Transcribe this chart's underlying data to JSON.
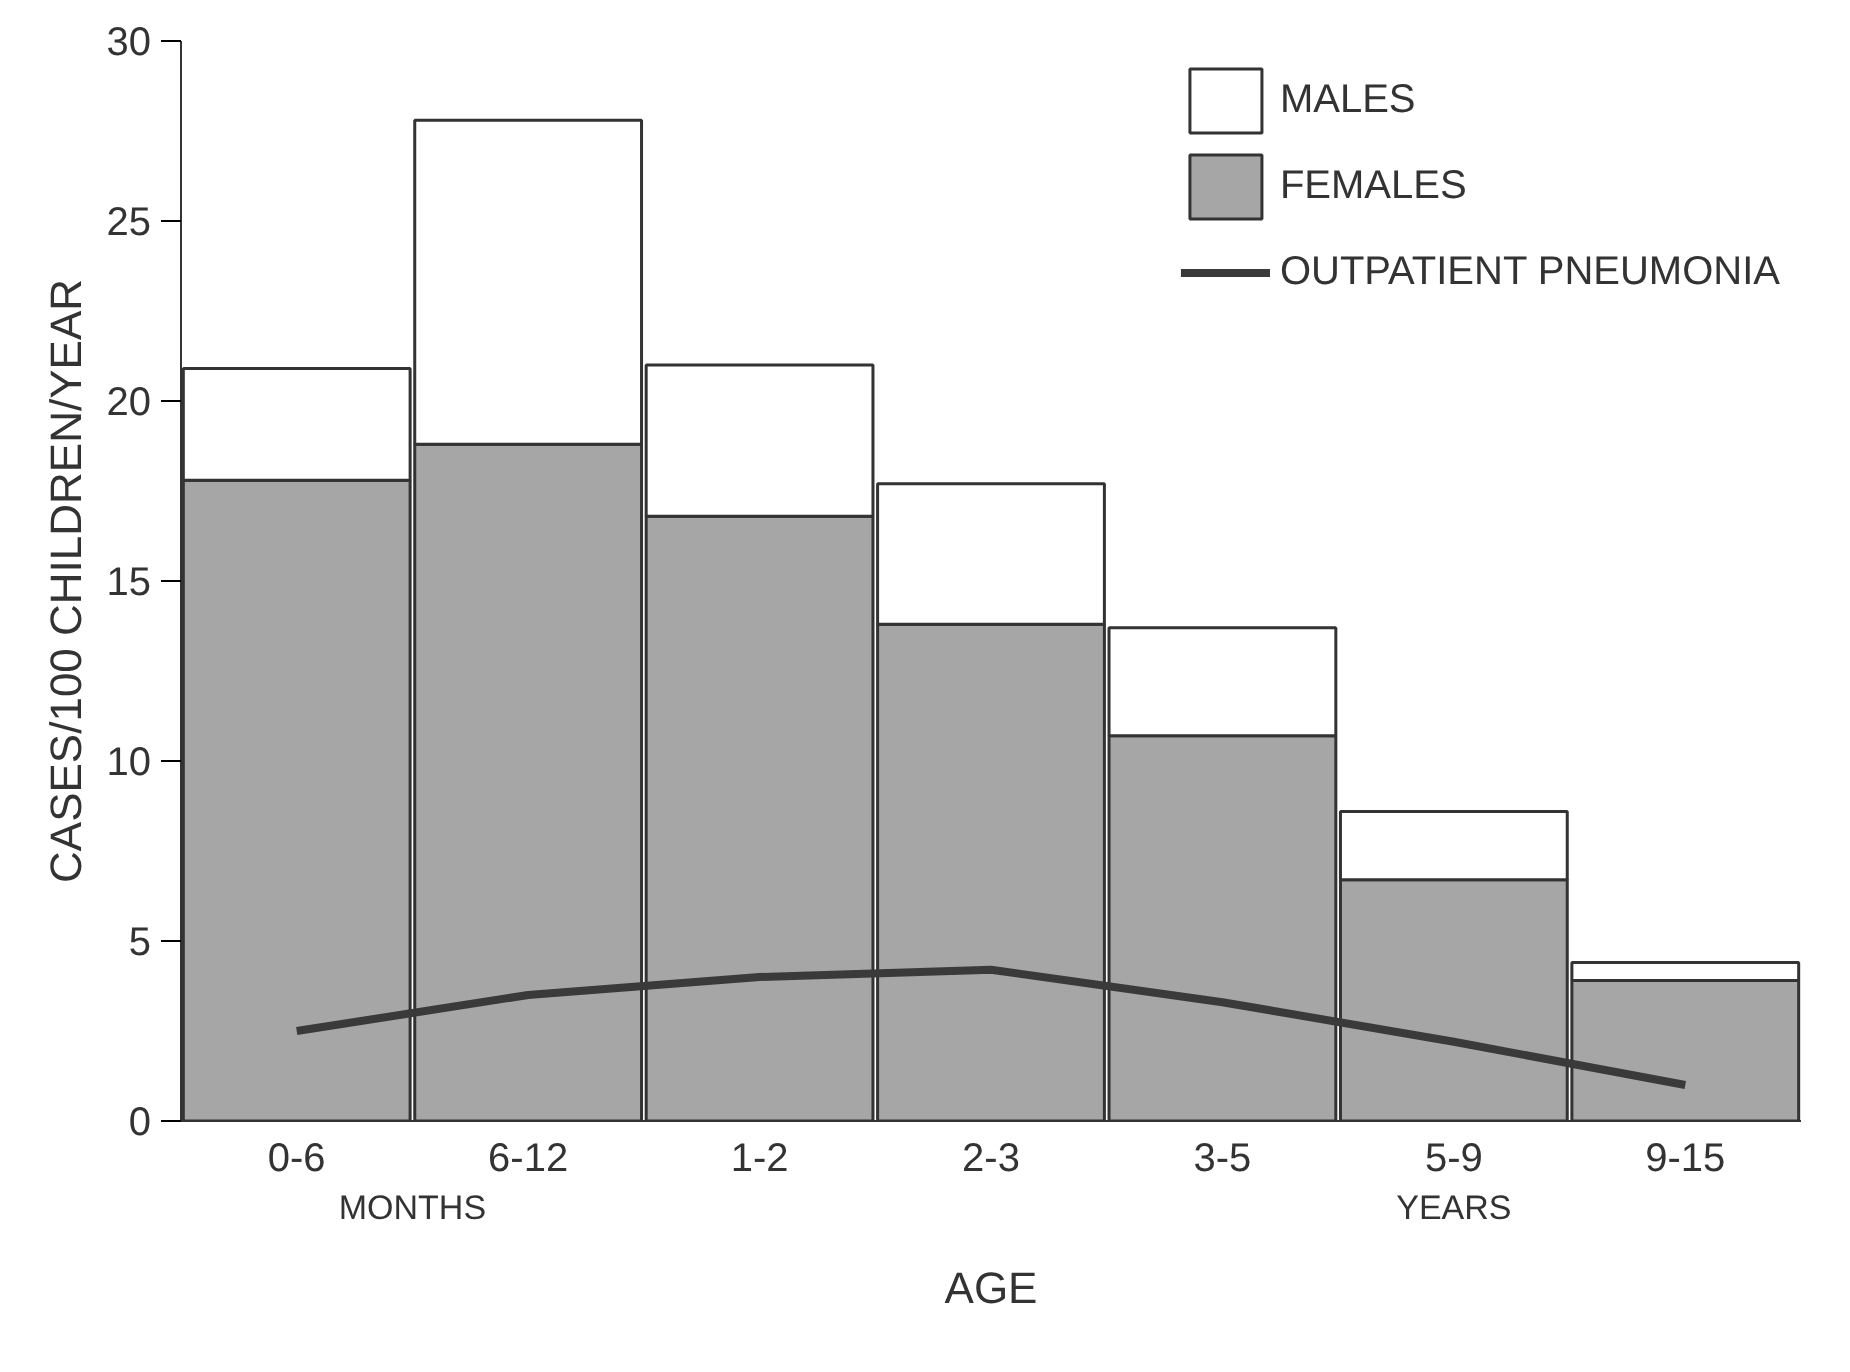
{
  "chart_data": {
    "type": "bar",
    "stacked": true,
    "xlabel": "AGE",
    "ylabel": "CASES/100 CHILDREN/YEAR",
    "categories": [
      "0-6",
      "6-12",
      "1-2",
      "2-3",
      "3-5",
      "5-9",
      "9-15"
    ],
    "annotations": [
      "MONTHS",
      "YEARS"
    ],
    "series": [
      {
        "name": "FEMALES",
        "color": "#a6a6a6",
        "values": [
          17.8,
          18.8,
          16.8,
          13.8,
          10.7,
          6.7,
          3.9
        ]
      },
      {
        "name": "MALES",
        "color": "#ffffff",
        "values": [
          3.1,
          9.0,
          4.2,
          3.9,
          3.0,
          1.9,
          0.5
        ]
      },
      {
        "name": "OUTPATIENT PNEUMONIA",
        "type": "line",
        "color": "#3a3a3a",
        "values": [
          2.5,
          3.5,
          4.0,
          4.2,
          3.3,
          2.2,
          1.0
        ]
      }
    ],
    "ylim": [
      0,
      30
    ],
    "yticks": [
      0,
      5,
      10,
      15,
      20,
      25,
      30
    ],
    "legend": "right",
    "grid": false
  }
}
